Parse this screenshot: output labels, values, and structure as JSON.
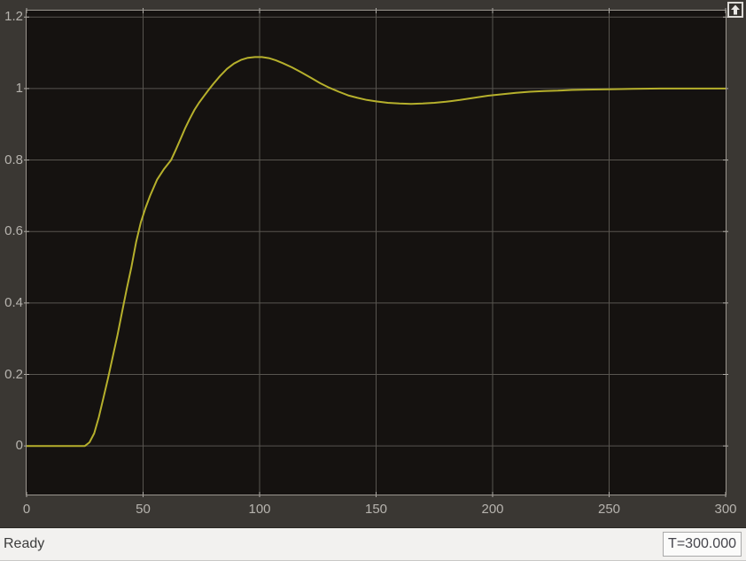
{
  "window": {
    "background_color": "#3a3733"
  },
  "chart_data": {
    "type": "line",
    "title": "",
    "xlabel": "",
    "ylabel": "",
    "xlim": [
      0,
      300
    ],
    "ylim": [
      -0.136,
      1.218
    ],
    "xticks": [
      0,
      50,
      100,
      150,
      200,
      250,
      300
    ],
    "yticks": [
      0,
      0.2,
      0.4,
      0.6,
      0.8,
      1,
      1.2
    ],
    "xtick_labels": [
      "0",
      "50",
      "100",
      "150",
      "200",
      "250",
      "300"
    ],
    "ytick_labels": [
      "0",
      "0.2",
      "0.4",
      "0.6",
      "0.8",
      "1",
      "1.2"
    ],
    "grid": true,
    "legend_position": "none",
    "plot_background": "#151210",
    "grid_color": "#58554f",
    "axis_color": "#9b968f",
    "tick_color": "#b0ada8",
    "tick_label_color": "#b6b3ae",
    "series": [
      {
        "name": "step-response-signal",
        "color": "#b6b02c",
        "points": [
          [
            0,
            0
          ],
          [
            10,
            0
          ],
          [
            20,
            0
          ],
          [
            25,
            0
          ],
          [
            27,
            0.01
          ],
          [
            29,
            0.035
          ],
          [
            31,
            0.08
          ],
          [
            33,
            0.135
          ],
          [
            35,
            0.19
          ],
          [
            37,
            0.25
          ],
          [
            39,
            0.31
          ],
          [
            41,
            0.375
          ],
          [
            43,
            0.44
          ],
          [
            45,
            0.5
          ],
          [
            47,
            0.57
          ],
          [
            49,
            0.625
          ],
          [
            51,
            0.665
          ],
          [
            53,
            0.7
          ],
          [
            56,
            0.745
          ],
          [
            59,
            0.775
          ],
          [
            62,
            0.8
          ],
          [
            64,
            0.828
          ],
          [
            66,
            0.858
          ],
          [
            68,
            0.888
          ],
          [
            70,
            0.915
          ],
          [
            72,
            0.94
          ],
          [
            74,
            0.96
          ],
          [
            76,
            0.978
          ],
          [
            78,
            0.995
          ],
          [
            80,
            1.012
          ],
          [
            83,
            1.035
          ],
          [
            86,
            1.055
          ],
          [
            89,
            1.07
          ],
          [
            92,
            1.08
          ],
          [
            95,
            1.086
          ],
          [
            98,
            1.088
          ],
          [
            101,
            1.088
          ],
          [
            104,
            1.085
          ],
          [
            107,
            1.079
          ],
          [
            110,
            1.071
          ],
          [
            114,
            1.059
          ],
          [
            118,
            1.045
          ],
          [
            122,
            1.03
          ],
          [
            126,
            1.015
          ],
          [
            130,
            1.002
          ],
          [
            134,
            0.991
          ],
          [
            138,
            0.981
          ],
          [
            142,
            0.974
          ],
          [
            146,
            0.968
          ],
          [
            150,
            0.964
          ],
          [
            155,
            0.96
          ],
          [
            160,
            0.958
          ],
          [
            165,
            0.957
          ],
          [
            170,
            0.958
          ],
          [
            175,
            0.96
          ],
          [
            180,
            0.963
          ],
          [
            186,
            0.968
          ],
          [
            192,
            0.974
          ],
          [
            198,
            0.98
          ],
          [
            204,
            0.984
          ],
          [
            210,
            0.988
          ],
          [
            216,
            0.991
          ],
          [
            222,
            0.993
          ],
          [
            228,
            0.994
          ],
          [
            234,
            0.996
          ],
          [
            240,
            0.997
          ],
          [
            250,
            0.998
          ],
          [
            260,
            0.999
          ],
          [
            272,
            1.0
          ],
          [
            286,
            1.0
          ],
          [
            300,
            1.0
          ]
        ]
      }
    ]
  },
  "icons": {
    "dock_icon": "undock-arrow-up"
  },
  "status_bar": {
    "ready_label": "Ready",
    "time_display": "T=300.000"
  }
}
